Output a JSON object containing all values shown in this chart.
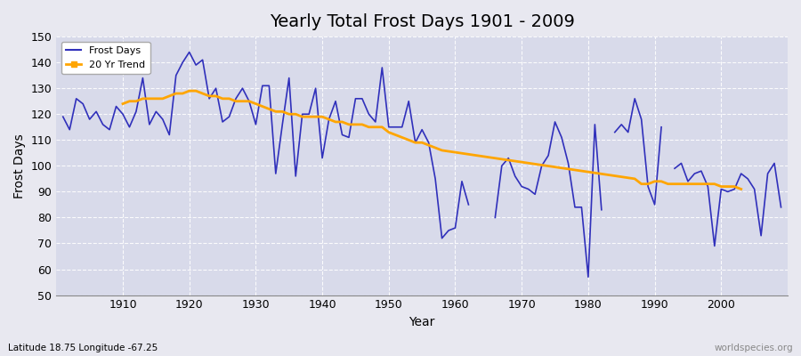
{
  "title": "Yearly Total Frost Days 1901 - 2009",
  "xlabel": "Year",
  "ylabel": "Frost Days",
  "subtitle_lat": "Latitude 18.75 Longitude -67.25",
  "watermark": "worldspecies.org",
  "years": [
    1901,
    1902,
    1903,
    1904,
    1905,
    1906,
    1907,
    1908,
    1909,
    1910,
    1911,
    1912,
    1913,
    1914,
    1915,
    1916,
    1917,
    1918,
    1919,
    1920,
    1921,
    1922,
    1923,
    1924,
    1925,
    1926,
    1927,
    1928,
    1929,
    1930,
    1931,
    1932,
    1933,
    1934,
    1935,
    1936,
    1937,
    1938,
    1939,
    1940,
    1941,
    1942,
    1943,
    1944,
    1945,
    1946,
    1947,
    1948,
    1949,
    1950,
    1951,
    1952,
    1953,
    1954,
    1955,
    1956,
    1957,
    1958,
    1959,
    1960,
    1961,
    1962,
    1963,
    1964,
    1965,
    1966,
    1967,
    1968,
    1969,
    1970,
    1971,
    1972,
    1973,
    1974,
    1975,
    1976,
    1977,
    1978,
    1979,
    1980,
    1981,
    1982,
    1983,
    1984,
    1985,
    1986,
    1987,
    1988,
    1989,
    1990,
    1991,
    1992,
    1993,
    1994,
    1995,
    1996,
    1997,
    1998,
    1999,
    2000,
    2001,
    2002,
    2003,
    2004,
    2005,
    2006,
    2007,
    2008,
    2009
  ],
  "frost_days": [
    119,
    114,
    126,
    124,
    118,
    121,
    116,
    114,
    123,
    120,
    115,
    121,
    134,
    116,
    121,
    118,
    112,
    135,
    140,
    144,
    139,
    141,
    126,
    130,
    117,
    119,
    126,
    130,
    125,
    116,
    131,
    131,
    97,
    116,
    134,
    96,
    120,
    120,
    130,
    103,
    118,
    125,
    112,
    111,
    126,
    126,
    120,
    117,
    138,
    115,
    115,
    115,
    125,
    109,
    114,
    109,
    95,
    72,
    75,
    76,
    94,
    85,
    null,
    null,
    null,
    80,
    100,
    103,
    96,
    92,
    91,
    89,
    100,
    104,
    117,
    111,
    101,
    84,
    84,
    57,
    116,
    83,
    null,
    113,
    116,
    113,
    126,
    118,
    92,
    85,
    115,
    null,
    99,
    101,
    94,
    97,
    98,
    92,
    69,
    91,
    90,
    91,
    97,
    95,
    91,
    73,
    97,
    101,
    84
  ],
  "trend_years": [
    1910,
    1911,
    1912,
    1913,
    1914,
    1915,
    1916,
    1917,
    1918,
    1919,
    1920,
    1921,
    1922,
    1923,
    1924,
    1925,
    1926,
    1927,
    1928,
    1929,
    1930,
    1931,
    1932,
    1933,
    1934,
    1935,
    1936,
    1937,
    1938,
    1939,
    1940,
    1941,
    1942,
    1943,
    1944,
    1945,
    1946,
    1947,
    1948,
    1949,
    1950,
    1951,
    1952,
    1953,
    1954,
    1955,
    1956,
    1957,
    1958,
    1987,
    1988,
    1989,
    1990,
    1991,
    1992,
    1993,
    1994,
    1995,
    1996,
    1997,
    1998,
    1999,
    2000,
    2001,
    2002,
    2003
  ],
  "trend_values": [
    124,
    125,
    125,
    126,
    126,
    126,
    126,
    127,
    128,
    128,
    129,
    129,
    128,
    127,
    127,
    126,
    126,
    125,
    125,
    125,
    124,
    123,
    122,
    121,
    121,
    120,
    120,
    119,
    119,
    119,
    119,
    118,
    117,
    117,
    116,
    116,
    116,
    115,
    115,
    115,
    113,
    112,
    111,
    110,
    109,
    109,
    108,
    107,
    106,
    95,
    93,
    93,
    94,
    94,
    93,
    93,
    93,
    93,
    93,
    93,
    93,
    93,
    92,
    92,
    92,
    91
  ],
  "line_color": "#3030bb",
  "trend_color": "#ffa500",
  "bg_color": "#e8e8f0",
  "plot_bg": "#d8daea",
  "ylim": [
    50,
    150
  ],
  "yticks": [
    50,
    60,
    70,
    80,
    90,
    100,
    110,
    120,
    130,
    140,
    150
  ],
  "xlim": [
    1900,
    2010
  ],
  "xticks": [
    1910,
    1920,
    1930,
    1940,
    1950,
    1960,
    1970,
    1980,
    1990,
    2000
  ]
}
